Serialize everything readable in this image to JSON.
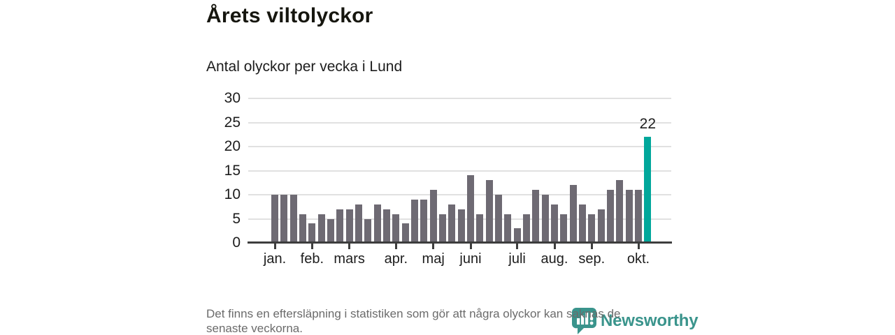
{
  "header": {
    "title": "Årets viltolyckor",
    "subtitle": "Antal olyckor per vecka i Lund"
  },
  "chart_data": {
    "type": "bar",
    "title": "Årets viltolyckor",
    "subtitle": "Antal olyckor per vecka i Lund",
    "x_unit": "vecka (week of year)",
    "values": [
      10,
      10,
      10,
      6,
      4,
      6,
      5,
      7,
      7,
      8,
      5,
      8,
      7,
      6,
      4,
      9,
      9,
      11,
      6,
      8,
      7,
      14,
      6,
      13,
      10,
      6,
      3,
      6,
      11,
      10,
      8,
      6,
      12,
      8,
      6,
      7,
      11,
      13,
      11,
      11,
      22
    ],
    "highlight_index": 40,
    "highlight_value_label": "22",
    "y_ticks": [
      0,
      5,
      10,
      15,
      20,
      25,
      30
    ],
    "ylim": [
      0,
      30
    ],
    "grid": true,
    "month_ticks": [
      {
        "label": "jan.",
        "week_index": 0
      },
      {
        "label": "feb.",
        "week_index": 4
      },
      {
        "label": "mars",
        "week_index": 8
      },
      {
        "label": "apr.",
        "week_index": 13
      },
      {
        "label": "maj",
        "week_index": 17
      },
      {
        "label": "juni",
        "week_index": 21
      },
      {
        "label": "juli",
        "week_index": 26
      },
      {
        "label": "aug.",
        "week_index": 30
      },
      {
        "label": "sep.",
        "week_index": 34
      },
      {
        "label": "okt.",
        "week_index": 39
      }
    ],
    "colors": {
      "bar": "#6e6a73",
      "highlight": "#00a79b",
      "grid": "#e1e1e1",
      "axis": "#3d3d3d",
      "label": "#1d1d1d"
    }
  },
  "footer": {
    "lines": [
      "Det finns en eftersläpning i statistiken som gör att några olyckor kan saknas de",
      "senaste veckorna."
    ]
  },
  "logo": {
    "text": "Newsworthy",
    "color": "#3a948c"
  }
}
